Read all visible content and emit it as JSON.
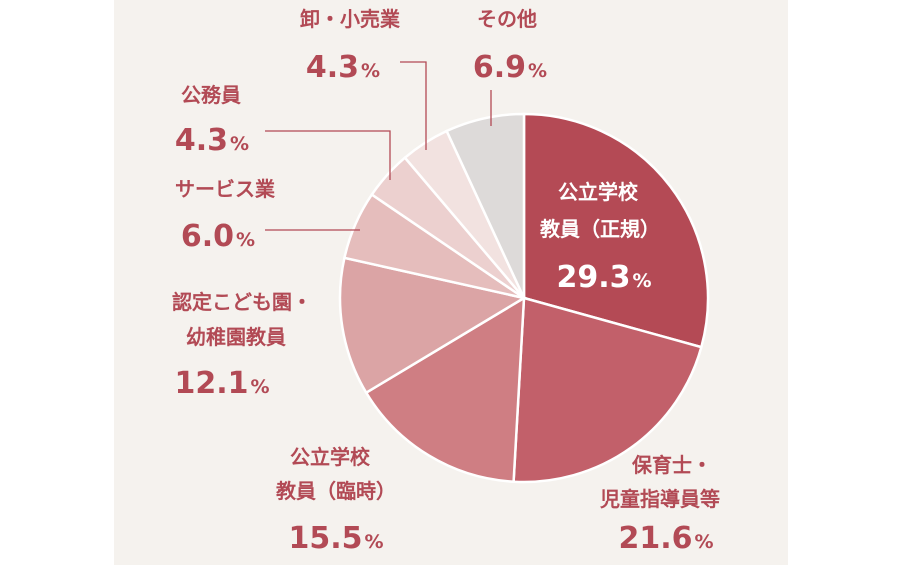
{
  "chart_data": {
    "type": "pie",
    "title": "",
    "slices": [
      {
        "label_lines": [
          "公立学校",
          "教員（正規）"
        ],
        "value": 29.3,
        "value_text": "29.3",
        "color": "#b44a55",
        "text_color": "#ffffff"
      },
      {
        "label_lines": [
          "保育士・",
          "児童指導員等"
        ],
        "value": 21.6,
        "value_text": "21.6",
        "color": "#c2606a",
        "text_color": "#b24a55"
      },
      {
        "label_lines": [
          "公立学校",
          "教員（臨時）"
        ],
        "value": 15.5,
        "value_text": "15.5",
        "color": "#cf7e83",
        "text_color": "#b24a55"
      },
      {
        "label_lines": [
          "認定こども園・",
          "幼稚園教員"
        ],
        "value": 12.1,
        "value_text": "12.1",
        "color": "#dba4a5",
        "text_color": "#b24a55"
      },
      {
        "label_lines": [
          "サービス業"
        ],
        "value": 6.0,
        "value_text": "6.0",
        "color": "#e5bdbc",
        "text_color": "#b24a55"
      },
      {
        "label_lines": [
          "公務員"
        ],
        "value": 4.3,
        "value_text": "4.3",
        "color": "#ecd0cf",
        "text_color": "#b24a55"
      },
      {
        "label_lines": [
          "卸・小売業"
        ],
        "value": 4.3,
        "value_text": "4.3",
        "color": "#f2e2e0",
        "text_color": "#b24a55"
      },
      {
        "label_lines": [
          "その他"
        ],
        "value": 6.9,
        "value_text": "6.9",
        "color": "#dddad9",
        "text_color": "#b24a55"
      }
    ],
    "unit": "%",
    "start": "12 o'clock",
    "direction": "clockwise"
  }
}
